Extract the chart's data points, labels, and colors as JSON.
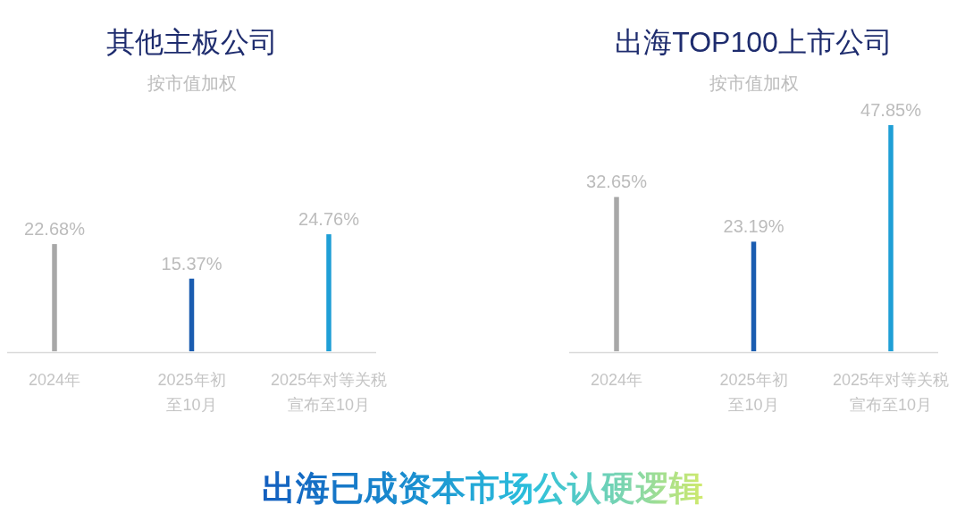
{
  "chart_data": [
    {
      "type": "bar",
      "title": "其他主板公司",
      "subtitle": "按市值加权",
      "categories": [
        "2024年",
        "2025年初至10月",
        "2025年对等关税宣布至10月"
      ],
      "values": [
        22.68,
        15.37,
        24.76
      ],
      "colors": [
        "#a8a8a8",
        "#1a5cb0",
        "#1f9fd6"
      ],
      "value_labels": [
        "22.68%",
        "15.37%",
        "24.76%"
      ],
      "annotations": [
        "出海已成资本市场公认硬逻辑"
      ]
    },
    {
      "type": "bar",
      "title": "出海TOP100上市公司",
      "subtitle": "按市值加权",
      "categories": [
        "2024年",
        "2025年初至10月",
        "2025年对等关税宣布至10月"
      ],
      "values": [
        32.65,
        23.19,
        47.85
      ],
      "colors": [
        "#a8a8a8",
        "#1a5cb0",
        "#1f9fd6"
      ],
      "value_labels": [
        "32.65%",
        "23.19%",
        "47.85%"
      ]
    }
  ]
}
